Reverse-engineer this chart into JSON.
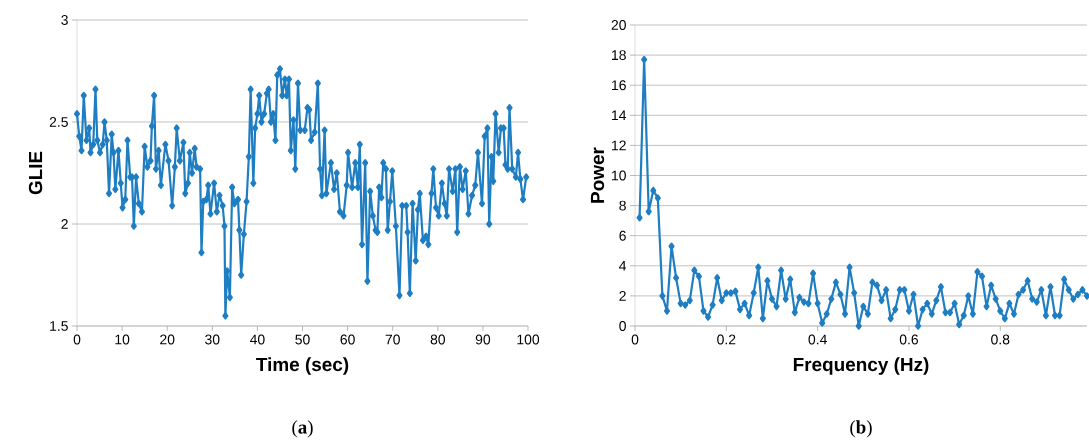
{
  "chart_data": [
    {
      "type": "line",
      "xlabel": "Time (sec)",
      "ylabel": "GLIE",
      "annotations": [
        "(**a**)"
      ],
      "xlim": [
        0,
        100
      ],
      "ylim": [
        1.5,
        3
      ],
      "xticks": [
        0,
        10,
        20,
        30,
        40,
        50,
        60,
        70,
        80,
        90,
        100
      ],
      "yticks": [
        1.5,
        2,
        2.5,
        3
      ],
      "grid": "y",
      "marker": "diamond",
      "line_style": "solid",
      "series": [
        {
          "color": "#1f7ec2",
          "x": [
            0,
            0.5,
            1,
            1.5,
            2.1,
            2.7,
            3,
            3.6,
            4.1,
            4.5,
            5.1,
            5.7,
            6.1,
            6.6,
            7.1,
            7.7,
            8.1,
            8.5,
            9.2,
            9.7,
            10.1,
            10.7,
            11.2,
            11.8,
            12.2,
            12.6,
            13.1,
            13.7,
            14.4,
            15,
            15.6,
            16.3,
            16.6,
            17.1,
            17.5,
            18.1,
            18.6,
            19.6,
            20.3,
            21.1,
            21.7,
            22.1,
            22.8,
            23.6,
            24,
            24.6,
            25,
            25.5,
            26.1,
            26.5,
            27.3,
            27.6,
            28,
            28.7,
            29.1,
            29.6,
            30.4,
            31,
            31.6,
            32.3,
            32.7,
            32.9,
            33.3,
            33.9,
            34.4,
            34.9,
            35.7,
            36,
            36.4,
            37,
            37.6,
            38.1,
            38.5,
            39.1,
            39.5,
            40,
            40.4,
            40.9,
            41.5,
            42.1,
            42.5,
            43,
            43.5,
            44,
            44.4,
            45,
            45.5,
            46.1,
            46.5,
            47,
            47.4,
            48,
            48.4,
            49,
            49.5,
            50.5,
            51.1,
            51.5,
            51.9,
            52.7,
            53.4,
            53.9,
            54.3,
            54.9,
            55.3,
            56.3,
            57,
            57.6,
            58.3,
            59.1,
            59.8,
            60.1,
            61,
            61.7,
            62.3,
            62.7,
            63.2,
            63.9,
            64.4,
            65,
            65.6,
            66.2,
            66.6,
            67,
            67.5,
            67.9,
            68.5,
            68.9,
            69.4,
            69.9,
            70.7,
            71.5,
            72.1,
            73,
            73.3,
            73.8,
            74.4,
            75.1,
            75.6,
            76,
            76.7,
            77.4,
            77.9,
            78.6,
            79,
            79.6,
            80.2,
            80.9,
            81.5,
            82,
            82.5,
            83.3,
            83.9,
            84.3,
            84.9,
            85.5,
            86.2,
            86.8,
            87.6,
            88.3,
            88.9,
            89.8,
            90.4,
            91,
            91.4,
            91.9,
            92.3,
            92.8,
            93.5,
            94,
            94.6,
            95,
            95.5,
            95.9,
            96.5,
            97.3,
            97.8,
            98.3,
            98.9,
            99.6
          ],
          "values": [
            2.54,
            2.43,
            2.36,
            2.63,
            2.41,
            2.47,
            2.35,
            2.39,
            2.66,
            2.41,
            2.35,
            2.39,
            2.5,
            2.41,
            2.15,
            2.44,
            2.35,
            2.17,
            2.36,
            2.2,
            2.08,
            2.12,
            2.41,
            2.23,
            2.23,
            1.99,
            2.23,
            2.1,
            2.06,
            2.38,
            2.28,
            2.31,
            2.48,
            2.63,
            2.27,
            2.36,
            2.19,
            2.39,
            2.31,
            2.09,
            2.28,
            2.47,
            2.31,
            2.4,
            2.15,
            2.2,
            2.35,
            2.25,
            2.37,
            2.28,
            2.27,
            1.86,
            2.11,
            2.12,
            2.19,
            2.05,
            2.2,
            2.06,
            2.14,
            2.09,
            1.99,
            1.55,
            1.77,
            1.64,
            2.18,
            2.1,
            2.12,
            1.97,
            1.75,
            1.95,
            2.11,
            2.33,
            2.66,
            2.2,
            2.47,
            2.54,
            2.63,
            2.5,
            2.54,
            2.64,
            2.66,
            2.5,
            2.54,
            2.41,
            2.73,
            2.76,
            2.63,
            2.71,
            2.63,
            2.71,
            2.36,
            2.51,
            2.27,
            2.69,
            2.46,
            2.46,
            2.57,
            2.56,
            2.41,
            2.45,
            2.69,
            2.27,
            2.14,
            2.46,
            2.15,
            2.3,
            2.17,
            2.25,
            2.06,
            2.04,
            2.19,
            2.35,
            2.18,
            2.3,
            2.18,
            2.39,
            1.9,
            2.3,
            1.72,
            2.16,
            2.04,
            1.97,
            1.96,
            2.18,
            2.13,
            2.3,
            2.27,
            1.97,
            2.11,
            2.26,
            1.99,
            1.65,
            2.09,
            2.09,
            1.96,
            1.66,
            2.1,
            1.82,
            2.07,
            2.15,
            1.92,
            1.94,
            1.9,
            2.15,
            2.27,
            2.08,
            2.04,
            2.2,
            2.1,
            2.04,
            2.27,
            2.16,
            2.27,
            1.96,
            2.28,
            2.17,
            2.26,
            2.05,
            2.14,
            2.19,
            2.35,
            2.1,
            2.43,
            2.47,
            2.0,
            2.33,
            2.21,
            2.54,
            2.35,
            2.47,
            2.47,
            2.29,
            2.27,
            2.57,
            2.27,
            2.23,
            2.35,
            2.22,
            2.12,
            2.23
          ]
        }
      ]
    },
    {
      "type": "line",
      "xlabel": "Frequency (Hz)",
      "ylabel": "Power",
      "annotations": [
        "(**b**)"
      ],
      "xlim": [
        0,
        0.99
      ],
      "ylim": [
        0,
        20
      ],
      "xticks": [
        0,
        0.2,
        0.4,
        0.6,
        0.8
      ],
      "yticks": [
        0,
        2,
        4,
        6,
        8,
        10,
        12,
        14,
        16,
        18,
        20
      ],
      "grid": "y",
      "marker": "diamond",
      "line_style": "solid",
      "series": [
        {
          "color": "#1f7ec2",
          "x": [
            0.01,
            0.02,
            0.03,
            0.04,
            0.05,
            0.06,
            0.07,
            0.08,
            0.09,
            0.1,
            0.11,
            0.12,
            0.13,
            0.14,
            0.15,
            0.16,
            0.17,
            0.18,
            0.19,
            0.2,
            0.21,
            0.22,
            0.23,
            0.24,
            0.25,
            0.26,
            0.27,
            0.28,
            0.29,
            0.3,
            0.31,
            0.32,
            0.33,
            0.34,
            0.35,
            0.36,
            0.37,
            0.38,
            0.39,
            0.4,
            0.41,
            0.42,
            0.43,
            0.44,
            0.45,
            0.46,
            0.47,
            0.48,
            0.49,
            0.5,
            0.51,
            0.52,
            0.53,
            0.54,
            0.55,
            0.56,
            0.57,
            0.58,
            0.59,
            0.6,
            0.61,
            0.62,
            0.63,
            0.64,
            0.65,
            0.66,
            0.67,
            0.68,
            0.69,
            0.7,
            0.71,
            0.72,
            0.73,
            0.74,
            0.75,
            0.76,
            0.77,
            0.78,
            0.79,
            0.8,
            0.81,
            0.82,
            0.83,
            0.84,
            0.85,
            0.86,
            0.87,
            0.88,
            0.89,
            0.9,
            0.91,
            0.92,
            0.93,
            0.94,
            0.95,
            0.96,
            0.97,
            0.98,
            0.99
          ],
          "values": [
            7.2,
            17.7,
            7.6,
            9.0,
            8.5,
            2.0,
            1.0,
            5.3,
            3.2,
            1.5,
            1.4,
            1.7,
            3.7,
            3.3,
            1.0,
            0.6,
            1.4,
            3.2,
            1.7,
            2.2,
            2.2,
            2.3,
            1.1,
            1.5,
            0.7,
            2.2,
            3.9,
            0.5,
            3.0,
            1.8,
            1.3,
            3.7,
            1.8,
            3.1,
            0.9,
            1.9,
            1.6,
            1.5,
            3.5,
            1.5,
            0.2,
            0.8,
            1.8,
            2.9,
            2.1,
            0.8,
            3.9,
            2.2,
            0.0,
            1.3,
            0.8,
            2.9,
            2.7,
            1.7,
            2.4,
            0.5,
            1.1,
            2.4,
            2.4,
            1.0,
            2.1,
            0.0,
            1.1,
            1.5,
            0.8,
            1.7,
            2.6,
            0.9,
            0.9,
            1.5,
            0.1,
            0.7,
            2.0,
            0.8,
            3.6,
            3.3,
            1.3,
            2.7,
            1.8,
            1.0,
            0.5,
            1.5,
            0.8,
            2.1,
            2.4,
            3.0,
            1.8,
            1.6,
            2.4,
            0.7,
            2.6,
            0.7,
            0.7,
            3.1,
            2.4,
            1.8,
            2.1,
            2.4,
            2.0
          ]
        }
      ]
    }
  ]
}
